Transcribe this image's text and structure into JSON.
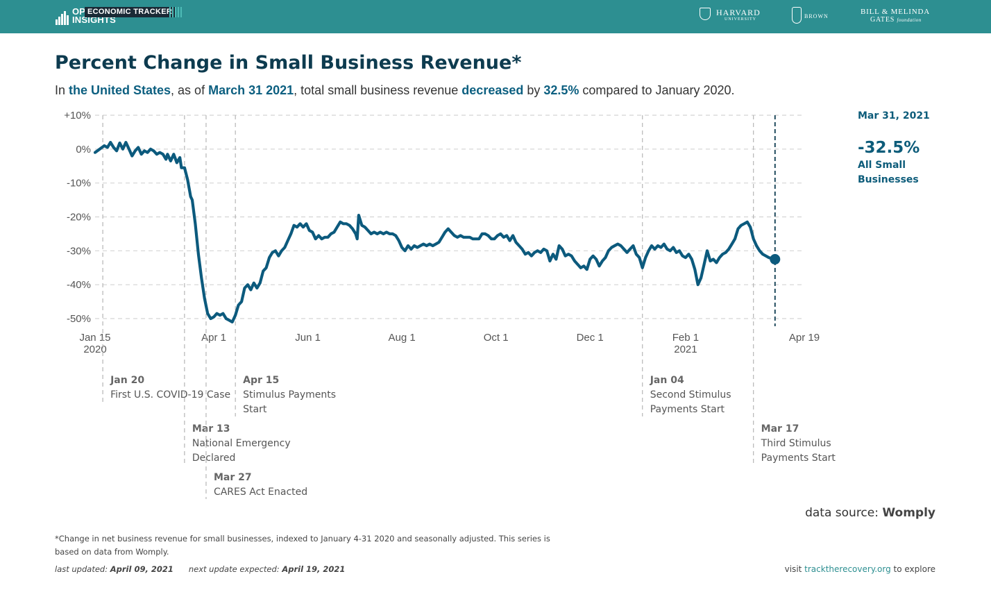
{
  "header": {
    "brand_line1": "OPPORTUNITY",
    "brand_line2": "INSIGHTS",
    "tracker_label": "ECONOMIC TRACKER",
    "harvard_name": "HARVARD",
    "harvard_sub": "UNIVERSITY",
    "brown_name": "BROWN",
    "gates_line1": "BILL & MELINDA",
    "gates_line2": "GATES",
    "gates_line2_suffix": "foundation",
    "bar_color": "#2d8f91"
  },
  "title": "Percent Change in Small Business Revenue*",
  "subtitle": {
    "p1": "In ",
    "region": "the United States",
    "p2": ", as of ",
    "date": "March 31 2021",
    "p3": ", total small business revenue ",
    "direction": "decreased",
    "p4": " by ",
    "value": "32.5%",
    "p5": " compared to January 2020."
  },
  "callout": {
    "date": "Mar 31, 2021",
    "value": "-32.5%",
    "series": "All Small Businesses"
  },
  "chart_data": {
    "type": "line",
    "title": "Percent Change in Small Business Revenue*",
    "xlabel": "",
    "ylabel": "",
    "xlim": [
      "2020-01-15",
      "2021-04-19"
    ],
    "ylim": [
      -50,
      10
    ],
    "grid": true,
    "line_color": "#0c5a7d",
    "y_ticks": [
      {
        "value": 10,
        "label": "+10%"
      },
      {
        "value": 0,
        "label": "0%"
      },
      {
        "value": -10,
        "label": "-10%"
      },
      {
        "value": -20,
        "label": "-20%"
      },
      {
        "value": -30,
        "label": "-30%"
      },
      {
        "value": -40,
        "label": "-40%"
      },
      {
        "value": -50,
        "label": "-50%"
      }
    ],
    "x_ticks": [
      {
        "date": "2020-01-15",
        "label": "Jan 15",
        "sublabel": "2020"
      },
      {
        "date": "2020-04-01",
        "label": "Apr 1",
        "sublabel": ""
      },
      {
        "date": "2020-06-01",
        "label": "Jun 1",
        "sublabel": ""
      },
      {
        "date": "2020-08-01",
        "label": "Aug 1",
        "sublabel": ""
      },
      {
        "date": "2020-10-01",
        "label": "Oct 1",
        "sublabel": ""
      },
      {
        "date": "2020-12-01",
        "label": "Dec 1",
        "sublabel": ""
      },
      {
        "date": "2021-02-01",
        "label": "Feb 1",
        "sublabel": "2021"
      },
      {
        "date": "2021-04-19",
        "label": "Apr 19",
        "sublabel": ""
      }
    ],
    "series": [
      {
        "name": "All Small Businesses",
        "points": [
          [
            "2020-01-15",
            -1.0
          ],
          [
            "2020-01-18",
            0.0
          ],
          [
            "2020-01-21",
            1.0
          ],
          [
            "2020-01-23",
            0.5
          ],
          [
            "2020-01-25",
            2.0
          ],
          [
            "2020-01-27",
            0.5
          ],
          [
            "2020-01-29",
            -0.5
          ],
          [
            "2020-01-31",
            1.8
          ],
          [
            "2020-02-02",
            0.0
          ],
          [
            "2020-02-04",
            2.0
          ],
          [
            "2020-02-06",
            0.0
          ],
          [
            "2020-02-08",
            -2.0
          ],
          [
            "2020-02-10",
            -0.5
          ],
          [
            "2020-02-12",
            0.5
          ],
          [
            "2020-02-14",
            -1.5
          ],
          [
            "2020-02-16",
            -0.5
          ],
          [
            "2020-02-18",
            -1.0
          ],
          [
            "2020-02-20",
            0.0
          ],
          [
            "2020-02-22",
            -0.5
          ],
          [
            "2020-02-24",
            -1.5
          ],
          [
            "2020-02-26",
            -1.0
          ],
          [
            "2020-02-28",
            -1.5
          ],
          [
            "2020-03-01",
            -3.0
          ],
          [
            "2020-03-02",
            -1.5
          ],
          [
            "2020-03-04",
            -3.5
          ],
          [
            "2020-03-06",
            -1.5
          ],
          [
            "2020-03-08",
            -4.0
          ],
          [
            "2020-03-10",
            -2.5
          ],
          [
            "2020-03-11",
            -5.5
          ],
          [
            "2020-03-13",
            -5.5
          ],
          [
            "2020-03-15",
            -9.0
          ],
          [
            "2020-03-17",
            -14.0
          ],
          [
            "2020-03-18",
            -15.0
          ],
          [
            "2020-03-20",
            -22.0
          ],
          [
            "2020-03-22",
            -31.0
          ],
          [
            "2020-03-24",
            -38.0
          ],
          [
            "2020-03-26",
            -44.0
          ],
          [
            "2020-03-28",
            -48.5
          ],
          [
            "2020-03-30",
            -50.0
          ],
          [
            "2020-04-01",
            -49.5
          ],
          [
            "2020-04-03",
            -48.5
          ],
          [
            "2020-04-05",
            -49.0
          ],
          [
            "2020-04-07",
            -48.5
          ],
          [
            "2020-04-09",
            -50.0
          ],
          [
            "2020-04-11",
            -50.5
          ],
          [
            "2020-04-13",
            -51.0
          ],
          [
            "2020-04-15",
            -49.0
          ],
          [
            "2020-04-17",
            -46.0
          ],
          [
            "2020-04-19",
            -45.0
          ],
          [
            "2020-04-21",
            -41.0
          ],
          [
            "2020-04-23",
            -40.0
          ],
          [
            "2020-04-25",
            -41.5
          ],
          [
            "2020-04-27",
            -39.5
          ],
          [
            "2020-04-29",
            -41.0
          ],
          [
            "2020-05-01",
            -39.5
          ],
          [
            "2020-05-03",
            -36.0
          ],
          [
            "2020-05-05",
            -35.0
          ],
          [
            "2020-05-07",
            -32.0
          ],
          [
            "2020-05-09",
            -30.5
          ],
          [
            "2020-05-11",
            -30.0
          ],
          [
            "2020-05-13",
            -31.5
          ],
          [
            "2020-05-15",
            -30.0
          ],
          [
            "2020-05-17",
            -29.0
          ],
          [
            "2020-05-19",
            -27.0
          ],
          [
            "2020-05-21",
            -25.0
          ],
          [
            "2020-05-23",
            -22.5
          ],
          [
            "2020-05-25",
            -23.0
          ],
          [
            "2020-05-27",
            -22.0
          ],
          [
            "2020-05-29",
            -23.0
          ],
          [
            "2020-05-31",
            -22.0
          ],
          [
            "2020-06-02",
            -24.0
          ],
          [
            "2020-06-04",
            -24.5
          ],
          [
            "2020-06-06",
            -26.5
          ],
          [
            "2020-06-08",
            -25.5
          ],
          [
            "2020-06-10",
            -26.5
          ],
          [
            "2020-06-12",
            -26.0
          ],
          [
            "2020-06-14",
            -26.0
          ],
          [
            "2020-06-16",
            -25.0
          ],
          [
            "2020-06-18",
            -24.5
          ],
          [
            "2020-06-20",
            -23.0
          ],
          [
            "2020-06-22",
            -21.5
          ],
          [
            "2020-06-24",
            -22.0
          ],
          [
            "2020-06-26",
            -22.0
          ],
          [
            "2020-06-28",
            -22.5
          ],
          [
            "2020-06-30",
            -23.5
          ],
          [
            "2020-07-02",
            -25.0
          ],
          [
            "2020-07-03",
            -26.5
          ],
          [
            "2020-07-04",
            -19.5
          ],
          [
            "2020-07-06",
            -22.5
          ],
          [
            "2020-07-08",
            -23.0
          ],
          [
            "2020-07-10",
            -24.0
          ],
          [
            "2020-07-12",
            -25.0
          ],
          [
            "2020-07-14",
            -24.5
          ],
          [
            "2020-07-16",
            -25.0
          ],
          [
            "2020-07-18",
            -24.5
          ],
          [
            "2020-07-20",
            -25.0
          ],
          [
            "2020-07-22",
            -24.5
          ],
          [
            "2020-07-24",
            -25.0
          ],
          [
            "2020-07-26",
            -25.0
          ],
          [
            "2020-07-28",
            -25.5
          ],
          [
            "2020-07-30",
            -27.0
          ],
          [
            "2020-08-01",
            -29.0
          ],
          [
            "2020-08-03",
            -30.0
          ],
          [
            "2020-08-05",
            -28.5
          ],
          [
            "2020-08-07",
            -29.5
          ],
          [
            "2020-08-09",
            -28.5
          ],
          [
            "2020-08-11",
            -29.0
          ],
          [
            "2020-08-13",
            -28.5
          ],
          [
            "2020-08-15",
            -28.0
          ],
          [
            "2020-08-17",
            -28.5
          ],
          [
            "2020-08-19",
            -28.0
          ],
          [
            "2020-08-21",
            -28.5
          ],
          [
            "2020-08-23",
            -28.0
          ],
          [
            "2020-08-25",
            -27.5
          ],
          [
            "2020-08-27",
            -26.0
          ],
          [
            "2020-08-29",
            -24.5
          ],
          [
            "2020-08-31",
            -23.5
          ],
          [
            "2020-09-02",
            -24.5
          ],
          [
            "2020-09-04",
            -25.5
          ],
          [
            "2020-09-06",
            -26.0
          ],
          [
            "2020-09-08",
            -25.5
          ],
          [
            "2020-09-10",
            -26.0
          ],
          [
            "2020-09-12",
            -26.0
          ],
          [
            "2020-09-14",
            -26.0
          ],
          [
            "2020-09-16",
            -26.5
          ],
          [
            "2020-09-18",
            -26.5
          ],
          [
            "2020-09-20",
            -26.5
          ],
          [
            "2020-09-22",
            -25.0
          ],
          [
            "2020-09-24",
            -25.0
          ],
          [
            "2020-09-26",
            -25.5
          ],
          [
            "2020-09-28",
            -26.5
          ],
          [
            "2020-09-30",
            -26.5
          ],
          [
            "2020-10-02",
            -25.5
          ],
          [
            "2020-10-04",
            -25.0
          ],
          [
            "2020-10-06",
            -26.0
          ],
          [
            "2020-10-08",
            -25.5
          ],
          [
            "2020-10-10",
            -27.0
          ],
          [
            "2020-10-12",
            -25.5
          ],
          [
            "2020-10-14",
            -27.5
          ],
          [
            "2020-10-16",
            -28.5
          ],
          [
            "2020-10-18",
            -29.5
          ],
          [
            "2020-10-20",
            -31.0
          ],
          [
            "2020-10-22",
            -30.5
          ],
          [
            "2020-10-24",
            -31.5
          ],
          [
            "2020-10-26",
            -30.5
          ],
          [
            "2020-10-28",
            -30.0
          ],
          [
            "2020-10-30",
            -30.5
          ],
          [
            "2020-11-01",
            -29.5
          ],
          [
            "2020-11-03",
            -30.0
          ],
          [
            "2020-11-05",
            -33.0
          ],
          [
            "2020-11-07",
            -31.0
          ],
          [
            "2020-11-09",
            -32.5
          ],
          [
            "2020-11-11",
            -28.5
          ],
          [
            "2020-11-13",
            -29.5
          ],
          [
            "2020-11-15",
            -31.5
          ],
          [
            "2020-11-17",
            -31.0
          ],
          [
            "2020-11-19",
            -31.5
          ],
          [
            "2020-11-21",
            -33.0
          ],
          [
            "2020-11-23",
            -34.0
          ],
          [
            "2020-11-25",
            -35.0
          ],
          [
            "2020-11-27",
            -34.5
          ],
          [
            "2020-11-29",
            -35.5
          ],
          [
            "2020-12-01",
            -32.5
          ],
          [
            "2020-12-03",
            -31.5
          ],
          [
            "2020-12-05",
            -32.5
          ],
          [
            "2020-12-07",
            -34.5
          ],
          [
            "2020-12-09",
            -33.0
          ],
          [
            "2020-12-11",
            -32.0
          ],
          [
            "2020-12-13",
            -30.0
          ],
          [
            "2020-12-15",
            -29.0
          ],
          [
            "2020-12-17",
            -28.5
          ],
          [
            "2020-12-19",
            -28.0
          ],
          [
            "2020-12-21",
            -28.5
          ],
          [
            "2020-12-23",
            -29.5
          ],
          [
            "2020-12-25",
            -30.5
          ],
          [
            "2020-12-27",
            -29.5
          ],
          [
            "2020-12-29",
            -28.5
          ],
          [
            "2020-12-31",
            -31.0
          ],
          [
            "2021-01-02",
            -32.0
          ],
          [
            "2021-01-04",
            -35.0
          ],
          [
            "2021-01-06",
            -32.0
          ],
          [
            "2021-01-08",
            -30.0
          ],
          [
            "2021-01-10",
            -28.5
          ],
          [
            "2021-01-12",
            -29.5
          ],
          [
            "2021-01-14",
            -28.5
          ],
          [
            "2021-01-16",
            -29.0
          ],
          [
            "2021-01-18",
            -28.0
          ],
          [
            "2021-01-20",
            -29.5
          ],
          [
            "2021-01-22",
            -30.0
          ],
          [
            "2021-01-24",
            -29.0
          ],
          [
            "2021-01-26",
            -30.5
          ],
          [
            "2021-01-28",
            -30.0
          ],
          [
            "2021-01-30",
            -31.5
          ],
          [
            "2021-02-01",
            -32.0
          ],
          [
            "2021-02-03",
            -31.0
          ],
          [
            "2021-02-05",
            -32.5
          ],
          [
            "2021-02-07",
            -35.5
          ],
          [
            "2021-02-09",
            -40.0
          ],
          [
            "2021-02-11",
            -38.0
          ],
          [
            "2021-02-13",
            -34.0
          ],
          [
            "2021-02-15",
            -30.0
          ],
          [
            "2021-02-17",
            -33.0
          ],
          [
            "2021-02-19",
            -32.5
          ],
          [
            "2021-02-21",
            -33.5
          ],
          [
            "2021-02-23",
            -32.0
          ],
          [
            "2021-02-25",
            -31.0
          ],
          [
            "2021-02-27",
            -30.5
          ],
          [
            "2021-03-01",
            -29.5
          ],
          [
            "2021-03-03",
            -28.0
          ],
          [
            "2021-03-05",
            -26.5
          ],
          [
            "2021-03-07",
            -23.5
          ],
          [
            "2021-03-09",
            -22.5
          ],
          [
            "2021-03-11",
            -22.0
          ],
          [
            "2021-03-13",
            -21.5
          ],
          [
            "2021-03-15",
            -23.0
          ],
          [
            "2021-03-17",
            -26.5
          ],
          [
            "2021-03-19",
            -28.5
          ],
          [
            "2021-03-21",
            -30.0
          ],
          [
            "2021-03-23",
            -31.0
          ],
          [
            "2021-03-25",
            -31.5
          ],
          [
            "2021-03-27",
            -32.0
          ],
          [
            "2021-03-29",
            -32.3
          ],
          [
            "2021-03-31",
            -32.5
          ]
        ]
      }
    ],
    "current_point": {
      "date": "2021-03-31",
      "value": -32.5
    },
    "annotations": [
      {
        "date": "2020-01-20",
        "label": "Jan 20",
        "lines": [
          "First U.S. COVID-19 Case"
        ],
        "row": 0
      },
      {
        "date": "2020-03-13",
        "label": "Mar 13",
        "lines": [
          "National Emergency",
          "Declared"
        ],
        "row": 1
      },
      {
        "date": "2020-03-27",
        "label": "Mar 27",
        "lines": [
          "CARES Act Enacted"
        ],
        "row": 2
      },
      {
        "date": "2020-04-15",
        "label": "Apr 15",
        "lines": [
          "Stimulus Payments",
          "Start"
        ],
        "row": 0
      },
      {
        "date": "2021-01-04",
        "label": "Jan 04",
        "lines": [
          "Second Stimulus",
          "Payments Start"
        ],
        "row": 0
      },
      {
        "date": "2021-03-17",
        "label": "Mar 17",
        "lines": [
          "Third Stimulus",
          "Payments Start"
        ],
        "row": 1
      }
    ]
  },
  "source": {
    "prefix": "data source: ",
    "name": "Womply"
  },
  "footnote": "*Change in net business revenue for small businesses, indexed to January 4-31 2020 and seasonally adjusted. This series is based on data from Womply.",
  "updated": {
    "last_label": "last updated:",
    "last_date": "April 09, 2021",
    "next_label": "next update expected:",
    "next_date": "April 19, 2021"
  },
  "visit": {
    "prefix": "visit ",
    "link": "tracktherecovery.org",
    "suffix": " to explore"
  }
}
